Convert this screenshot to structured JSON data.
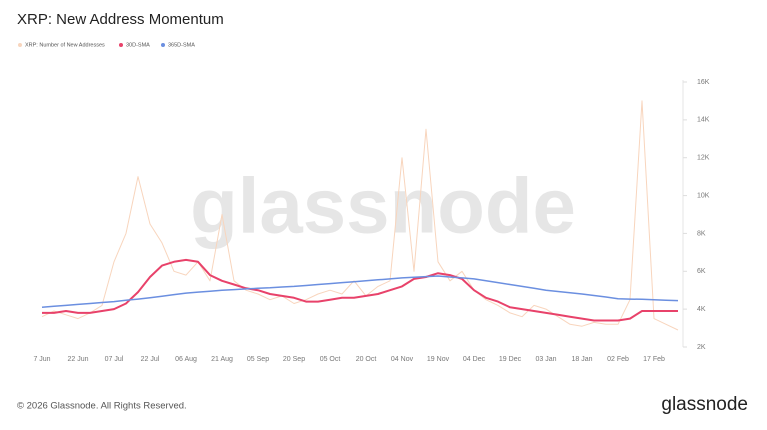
{
  "chart_data": {
    "type": "line",
    "title": "XRP: New Address Momentum",
    "x": [
      "7 Jun",
      "12 Jun",
      "17 Jun",
      "22 Jun",
      "27 Jun",
      "02 Jul",
      "07 Jul",
      "12 Jul",
      "17 Jul",
      "22 Jul",
      "27 Jul",
      "01 Aug",
      "06 Aug",
      "11 Aug",
      "16 Aug",
      "21 Aug",
      "26 Aug",
      "31 Aug",
      "05 Sep",
      "10 Sep",
      "15 Sep",
      "20 Sep",
      "25 Sep",
      "30 Sep",
      "05 Oct",
      "10 Oct",
      "15 Oct",
      "20 Oct",
      "25 Oct",
      "30 Oct",
      "04 Nov",
      "09 Nov",
      "14 Nov",
      "19 Nov",
      "24 Nov",
      "29 Nov",
      "04 Dec",
      "09 Dec",
      "14 Dec",
      "19 Dec",
      "24 Dec",
      "29 Dec",
      "03 Jan",
      "08 Jan",
      "13 Jan",
      "18 Jan",
      "23 Jan",
      "28 Jan",
      "02 Feb",
      "07 Feb",
      "12 Feb",
      "17 Feb",
      "22 Feb",
      "27 Feb"
    ],
    "series": [
      {
        "name": "XRP: Number of New Addresses",
        "color": "#f8d5bd",
        "values": [
          3600,
          3900,
          3700,
          3500,
          3800,
          4200,
          6500,
          8000,
          11000,
          8500,
          7500,
          6000,
          5800,
          6500,
          5500,
          9000,
          5500,
          5000,
          4800,
          4500,
          4700,
          4300,
          4500,
          4800,
          5000,
          4800,
          5500,
          4700,
          5200,
          5500,
          12000,
          6000,
          13500,
          6500,
          5500,
          6000,
          5000,
          4500,
          4200,
          3800,
          3600,
          4200,
          4000,
          3600,
          3200,
          3100,
          3300,
          3200,
          3200,
          4500,
          15000,
          3500,
          3200,
          2900
        ]
      },
      {
        "name": "30D-SMA",
        "color": "#e8426a",
        "values": [
          3800,
          3800,
          3900,
          3800,
          3800,
          3900,
          4000,
          4300,
          4900,
          5700,
          6300,
          6500,
          6600,
          6500,
          5800,
          5500,
          5300,
          5100,
          5000,
          4800,
          4700,
          4600,
          4400,
          4400,
          4500,
          4600,
          4600,
          4700,
          4800,
          5000,
          5200,
          5600,
          5700,
          5900,
          5800,
          5600,
          5000,
          4600,
          4400,
          4100,
          4000,
          3900,
          3800,
          3700,
          3600,
          3500,
          3400,
          3400,
          3400,
          3500,
          3900,
          3900,
          3900,
          3900
        ]
      },
      {
        "name": "365D-SMA",
        "color": "#6b8fe0",
        "values": [
          4100,
          4150,
          4200,
          4250,
          4300,
          4350,
          4400,
          4470,
          4530,
          4600,
          4680,
          4770,
          4850,
          4900,
          4950,
          5000,
          5030,
          5070,
          5100,
          5130,
          5170,
          5200,
          5250,
          5300,
          5350,
          5400,
          5450,
          5500,
          5550,
          5600,
          5650,
          5680,
          5720,
          5750,
          5700,
          5650,
          5600,
          5500,
          5400,
          5300,
          5200,
          5100,
          5000,
          4930,
          4870,
          4800,
          4720,
          4640,
          4550,
          4530,
          4520,
          4500,
          4470,
          4450
        ]
      }
    ],
    "xticks": [
      "7 Jun",
      "22 Jun",
      "07 Jul",
      "22 Jul",
      "06 Aug",
      "21 Aug",
      "05 Sep",
      "20 Sep",
      "05 Oct",
      "20 Oct",
      "04 Nov",
      "19 Nov",
      "04 Dec",
      "19 Dec",
      "03 Jan",
      "18 Jan",
      "02 Feb",
      "17 Feb"
    ],
    "ylim": [
      2000,
      16000
    ],
    "yticks": [
      {
        "value": 2000,
        "label": "2K"
      },
      {
        "value": 4000,
        "label": "4K"
      },
      {
        "value": 6000,
        "label": "6K"
      },
      {
        "value": 8000,
        "label": "8K"
      },
      {
        "value": 10000,
        "label": "10K"
      },
      {
        "value": 12000,
        "label": "12K"
      },
      {
        "value": 14000,
        "label": "14K"
      },
      {
        "value": 16000,
        "label": "16K"
      }
    ],
    "grid": false,
    "watermark": "glassnode",
    "copyright": "© 2026 Glassnode. All Rights Reserved.",
    "logo": "glassnode"
  }
}
